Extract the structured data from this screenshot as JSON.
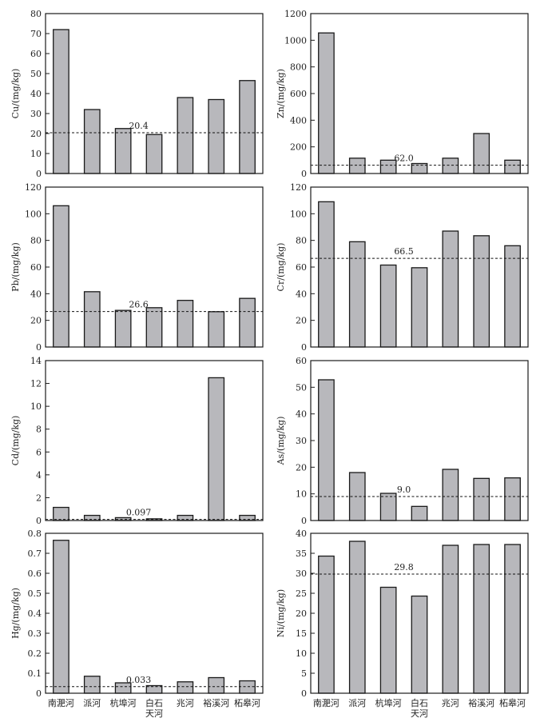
{
  "chart_data": [
    {
      "type": "bar",
      "ylabel": "Cu/(mg/kg)",
      "ylim": [
        0,
        80
      ],
      "yticks": [
        "0",
        "10",
        "20",
        "30",
        "40",
        "50",
        "60",
        "70",
        "80"
      ],
      "categories": [
        "南淝河",
        "派河",
        "杭埠河",
        "白石天河",
        "兆河",
        "裕溪河",
        "柘皋河"
      ],
      "values": [
        72,
        32,
        22.5,
        19.5,
        38,
        37,
        46.5
      ],
      "reference": {
        "value": 20.4,
        "label": "20.4"
      }
    },
    {
      "type": "bar",
      "ylabel": "Zn/(mg/kg)",
      "ylim": [
        0,
        1200
      ],
      "yticks": [
        "0",
        "200",
        "400",
        "600",
        "800",
        "1000",
        "1200"
      ],
      "categories": [
        "南淝河",
        "派河",
        "杭埠河",
        "白石天河",
        "兆河",
        "裕溪河",
        "柘皋河"
      ],
      "values": [
        1055,
        115,
        100,
        75,
        115,
        300,
        100
      ],
      "reference": {
        "value": 62.0,
        "label": "62.0"
      }
    },
    {
      "type": "bar",
      "ylabel": "Pb/(mg/kg)",
      "ylim": [
        0,
        120
      ],
      "yticks": [
        "0",
        "20",
        "40",
        "60",
        "80",
        "100",
        "120"
      ],
      "categories": [
        "南淝河",
        "派河",
        "杭埠河",
        "白石天河",
        "兆河",
        "裕溪河",
        "柘皋河"
      ],
      "values": [
        106,
        41.5,
        27.5,
        29.5,
        35,
        26.5,
        36.5
      ],
      "reference": {
        "value": 26.6,
        "label": "26.6"
      }
    },
    {
      "type": "bar",
      "ylabel": "Cr/(mg/kg)",
      "ylim": [
        0,
        120
      ],
      "yticks": [
        "0",
        "20",
        "40",
        "60",
        "80",
        "100",
        "120"
      ],
      "categories": [
        "南淝河",
        "派河",
        "杭埠河",
        "白石天河",
        "兆河",
        "裕溪河",
        "柘皋河"
      ],
      "values": [
        109,
        79,
        61.5,
        59.5,
        87,
        83.5,
        76
      ],
      "reference": {
        "value": 66.5,
        "label": "66.5"
      }
    },
    {
      "type": "bar",
      "ylabel": "Cd/(mg/kg)",
      "ylim": [
        0,
        14
      ],
      "yticks": [
        "0",
        "2",
        "4",
        "6",
        "8",
        "10",
        "12",
        "14"
      ],
      "categories": [
        "南淝河",
        "派河",
        "杭埠河",
        "白石天河",
        "兆河",
        "裕溪河",
        "柘皋河"
      ],
      "values": [
        1.15,
        0.45,
        0.25,
        0.15,
        0.45,
        12.5,
        0.45
      ],
      "reference": {
        "value": 0.097,
        "label": "0.097"
      }
    },
    {
      "type": "bar",
      "ylabel": "As/(mg/kg)",
      "ylim": [
        0,
        60
      ],
      "yticks": [
        "0",
        "10",
        "20",
        "30",
        "40",
        "50",
        "60"
      ],
      "categories": [
        "南淝河",
        "派河",
        "杭埠河",
        "白石天河",
        "兆河",
        "裕溪河",
        "柘皋河"
      ],
      "values": [
        52.8,
        18,
        10.2,
        5.3,
        19.2,
        15.8,
        16
      ],
      "reference": {
        "value": 9.0,
        "label": "9.0"
      }
    },
    {
      "type": "bar",
      "ylabel": "Hg/(mg/kg)",
      "ylim": [
        0,
        0.8
      ],
      "yticks": [
        "0",
        "0.1",
        "0.2",
        "0.3",
        "0.4",
        "0.5",
        "0.6",
        "0.7",
        "0.8"
      ],
      "categories": [
        "南淝河",
        "派河",
        "杭埠河",
        "白石天河",
        "兆河",
        "裕溪河",
        "柘皋河"
      ],
      "values": [
        0.765,
        0.085,
        0.052,
        0.038,
        0.057,
        0.078,
        0.062
      ],
      "reference": {
        "value": 0.033,
        "label": "0.033"
      }
    },
    {
      "type": "bar",
      "ylabel": "Ni/(mg/kg)",
      "ylim": [
        0,
        40
      ],
      "yticks": [
        "0",
        "5",
        "10",
        "15",
        "20",
        "25",
        "30",
        "35",
        "40"
      ],
      "categories": [
        "南淝河",
        "派河",
        "杭埠河",
        "白石天河",
        "兆河",
        "裕溪河",
        "柘皋河"
      ],
      "values": [
        34.3,
        38,
        26.5,
        24.3,
        37,
        37.2,
        37.2
      ],
      "reference": {
        "value": 29.8,
        "label": "29.8"
      }
    }
  ],
  "style": {
    "bar_fill": "#b8b8bc",
    "bar_stroke": "#1a1a1a",
    "axis_color": "#1a1a1a"
  },
  "category_lines": [
    [
      "南淝河"
    ],
    [
      "派河"
    ],
    [
      "杭埠河"
    ],
    [
      "白石",
      "天河"
    ],
    [
      "兆河"
    ],
    [
      "裕溪河"
    ],
    [
      "柘皋河"
    ]
  ]
}
